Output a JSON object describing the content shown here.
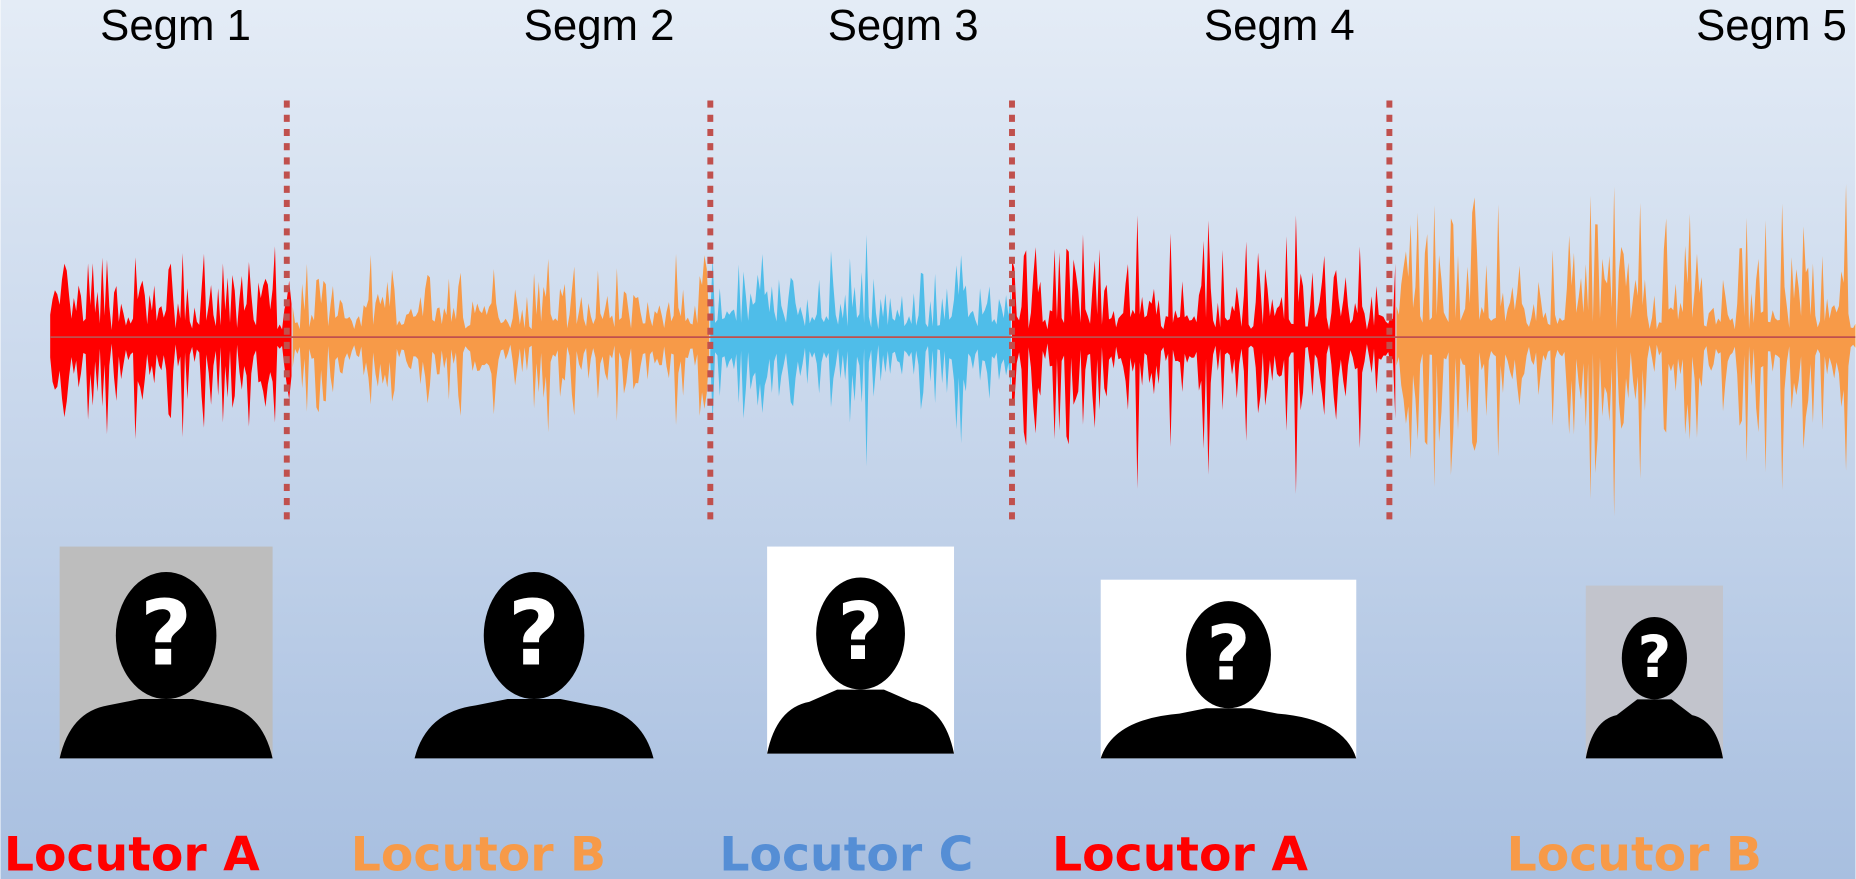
{
  "segments": [
    {
      "label": "Segm 1",
      "speaker": "Locutor A",
      "wave_color": "#ff0000",
      "label_color": "#ff0000",
      "glyph": "?"
    },
    {
      "label": "Segm 2",
      "speaker": "Locutor B",
      "wave_color": "#f79a48",
      "label_color": "#f79a48",
      "glyph": "?"
    },
    {
      "label": "Segm 3",
      "speaker": "Locutor C",
      "wave_color": "#4fbde9",
      "label_color": "#558ed5",
      "glyph": "?"
    },
    {
      "label": "Segm 4",
      "speaker": "Locutor A",
      "wave_color": "#ff0000",
      "label_color": "#ff0000",
      "glyph": "?"
    },
    {
      "label": "Segm 5",
      "speaker": "Locutor B",
      "wave_color": "#f79a48",
      "label_color": "#f79a48",
      "glyph": "?"
    }
  ]
}
